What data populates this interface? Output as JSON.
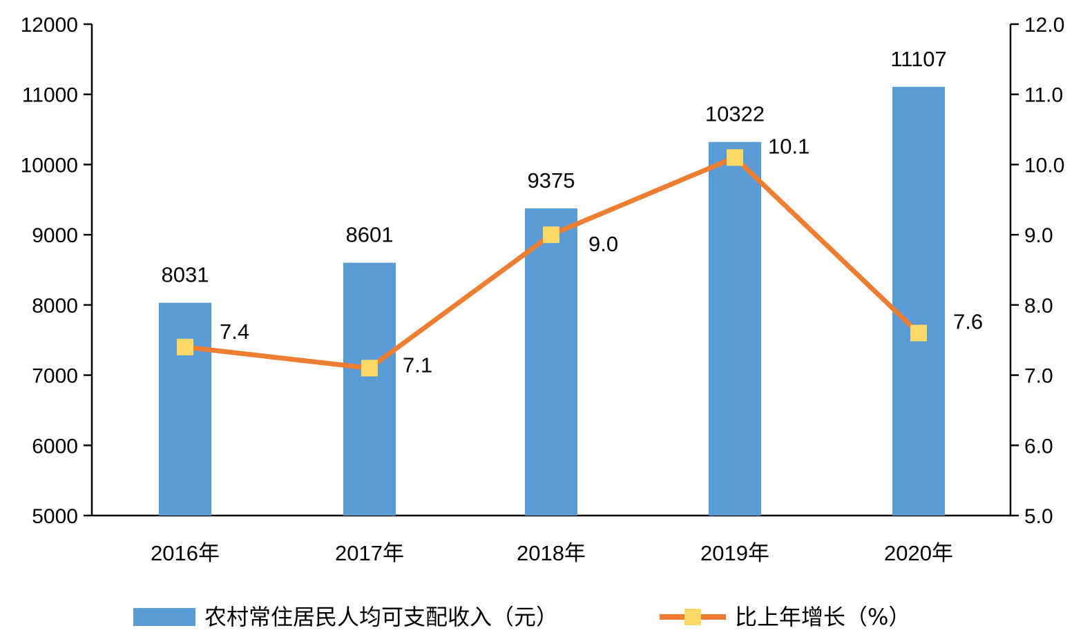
{
  "chart_data": {
    "type": "bar",
    "categories": [
      "2016年",
      "2017年",
      "2018年",
      "2019年",
      "2020年"
    ],
    "series": [
      {
        "name": "农村常住居民人均可支配收入（元）",
        "type": "bar",
        "axis": "left",
        "color": "#5b9bd5",
        "values": [
          8031,
          8601,
          9375,
          10322,
          11107
        ],
        "labels": [
          "8031",
          "8601",
          "9375",
          "10322",
          "11107"
        ]
      },
      {
        "name": "比上年增长（%）",
        "type": "line",
        "axis": "right",
        "color": "#ed7d31",
        "marker_color": "#ffd966",
        "values": [
          7.4,
          7.1,
          9.0,
          10.1,
          7.6
        ],
        "labels": [
          "7.4",
          "7.1",
          "9.0",
          "10.1",
          "7.6"
        ]
      }
    ],
    "y_left": {
      "range": [
        5000,
        12000
      ],
      "ticks": [
        "5000",
        "6000",
        "7000",
        "8000",
        "9000",
        "10000",
        "11000",
        "12000"
      ]
    },
    "y_right": {
      "range": [
        5.0,
        12.0
      ],
      "ticks": [
        "5.0",
        "6.0",
        "7.0",
        "8.0",
        "9.0",
        "10.0",
        "11.0",
        "12.0"
      ]
    },
    "grid": false,
    "legend": "bottom"
  }
}
